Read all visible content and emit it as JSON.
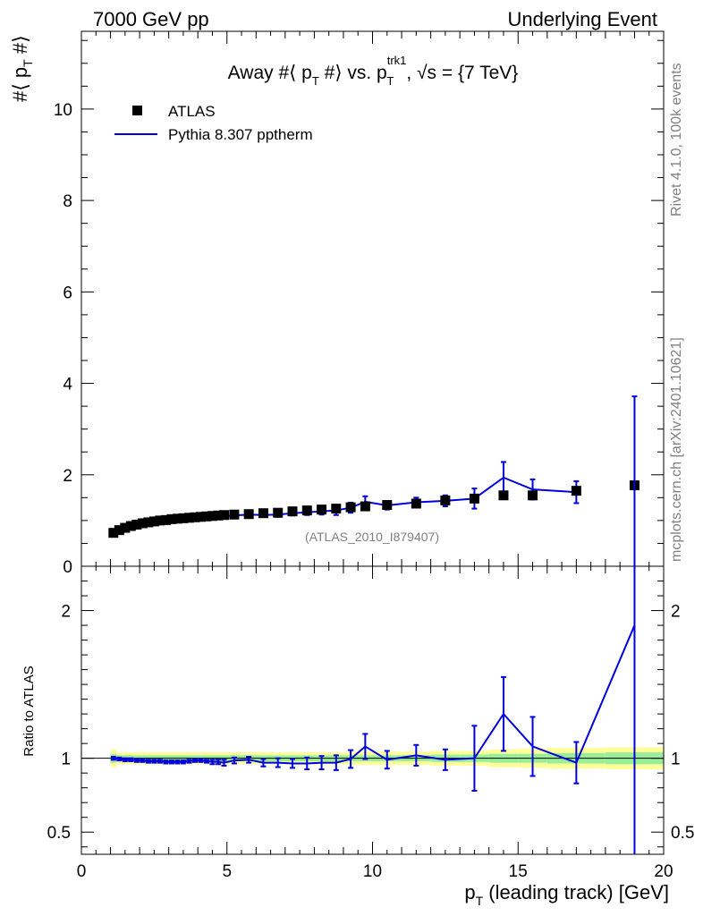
{
  "header": {
    "left": "7000 GeV pp",
    "right": "Underlying Event"
  },
  "side": {
    "rivet": "Rivet 4.1.0,  100k events",
    "mcplots": "mcplots.cern.ch [arXiv:2401.10621]"
  },
  "chart_data": [
    {
      "type": "scatter",
      "panel": "main",
      "title": "Away #⟨ p_T #⟩ vs. p_T^trk1, √s = {7 TeV}",
      "title_parts": {
        "a": "Away #⟨ p",
        "a_sub": "T",
        "b": " #⟩ vs. p",
        "b_sup": "trk1",
        "b_sub": "T",
        "c": ", √s = {7 TeV}"
      },
      "ylabel_parts": {
        "a": "#⟨ p",
        "sub": "T",
        "b": " #⟩"
      },
      "xlabel_parts": {
        "a": "p",
        "sub": "T",
        "b": " (leading track) [GeV]"
      },
      "watermark": "(ATLAS_2010_I879407)",
      "xlim": [
        0,
        20
      ],
      "ylim": [
        0,
        11.7
      ],
      "xticks": [
        0,
        5,
        10,
        15,
        20
      ],
      "xticklabels": [
        "0",
        "5",
        "10",
        "15",
        "20"
      ],
      "yticks": [
        0,
        2,
        4,
        6,
        8,
        10
      ],
      "yticklabels": [
        "0",
        "2",
        "4",
        "6",
        "8",
        "10"
      ],
      "legend": {
        "position": "top-left",
        "entries": [
          "ATLAS",
          "Pythia 8.307 pptherm"
        ]
      },
      "series": [
        {
          "name": "ATLAS",
          "style": "marker",
          "color": "#000000",
          "x": [
            1.1,
            1.3,
            1.5,
            1.7,
            1.9,
            2.1,
            2.3,
            2.5,
            2.7,
            2.9,
            3.1,
            3.3,
            3.5,
            3.7,
            3.9,
            4.1,
            4.3,
            4.5,
            4.7,
            4.9,
            5.25,
            5.75,
            6.25,
            6.75,
            7.25,
            7.75,
            8.25,
            8.75,
            9.25,
            9.75,
            10.5,
            11.5,
            12.5,
            13.5,
            14.5,
            15.5,
            17.0,
            19.0
          ],
          "y": [
            0.73,
            0.79,
            0.84,
            0.88,
            0.91,
            0.94,
            0.96,
            0.98,
            1.0,
            1.01,
            1.03,
            1.04,
            1.05,
            1.06,
            1.07,
            1.08,
            1.09,
            1.1,
            1.11,
            1.12,
            1.13,
            1.14,
            1.16,
            1.17,
            1.2,
            1.22,
            1.24,
            1.26,
            1.29,
            1.31,
            1.34,
            1.37,
            1.44,
            1.48,
            1.55,
            1.55,
            1.65,
            1.77
          ]
        },
        {
          "name": "Pythia 8.307 pptherm",
          "style": "line",
          "color": "#0000dd",
          "x": [
            1.1,
            1.3,
            1.5,
            1.7,
            1.9,
            2.1,
            2.3,
            2.5,
            2.7,
            2.9,
            3.1,
            3.3,
            3.5,
            3.7,
            3.9,
            4.1,
            4.3,
            4.5,
            4.7,
            4.9,
            5.25,
            5.75,
            6.25,
            6.75,
            7.25,
            7.75,
            8.25,
            8.75,
            9.25,
            9.75,
            10.5,
            11.5,
            12.5,
            13.5,
            14.5,
            15.5,
            17.0
          ],
          "y": [
            0.73,
            0.78,
            0.83,
            0.87,
            0.9,
            0.93,
            0.94,
            0.96,
            0.98,
            0.99,
            1.0,
            1.01,
            1.02,
            1.04,
            1.05,
            1.06,
            1.07,
            1.08,
            1.08,
            1.09,
            1.11,
            1.13,
            1.12,
            1.13,
            1.16,
            1.18,
            1.2,
            1.22,
            1.28,
            1.41,
            1.33,
            1.4,
            1.43,
            1.48,
            1.94,
            1.68,
            1.62
          ],
          "err": [
            0.01,
            0.01,
            0.01,
            0.01,
            0.01,
            0.01,
            0.01,
            0.01,
            0.01,
            0.01,
            0.01,
            0.01,
            0.01,
            0.02,
            0.02,
            0.02,
            0.02,
            0.02,
            0.02,
            0.02,
            0.03,
            0.03,
            0.04,
            0.05,
            0.05,
            0.06,
            0.07,
            0.1,
            0.11,
            0.12,
            0.09,
            0.1,
            0.12,
            0.22,
            0.34,
            0.22,
            0.24
          ]
        }
      ]
    },
    {
      "type": "line",
      "panel": "ratio",
      "ylabel": "Ratio to ATLAS",
      "xlim": [
        0,
        20
      ],
      "ylim": [
        0.35,
        2.3
      ],
      "yticks": [
        0.5,
        1,
        2
      ],
      "yticklabels": [
        "0.5",
        "1",
        "2"
      ],
      "band": {
        "x": [
          1.1,
          1.3,
          1.5,
          1.7,
          1.9,
          2.1,
          2.3,
          2.5,
          2.7,
          2.9,
          3.1,
          3.3,
          3.5,
          3.7,
          3.9,
          4.1,
          4.3,
          4.5,
          4.7,
          4.9,
          5.25,
          5.75,
          6.25,
          6.75,
          7.25,
          7.75,
          8.25,
          8.75,
          9.25,
          9.75,
          10.5,
          11.5,
          12.5,
          13.5,
          14.5,
          15.5,
          17.0,
          19.0
        ],
        "halfwidth": [
          0.1,
          0.1,
          0.1,
          0.1,
          0.1,
          0.2,
          0.2,
          0.2,
          0.2,
          0.2,
          0.2,
          0.2,
          0.2,
          0.2,
          0.2,
          0.2,
          0.2,
          0.2,
          0.2,
          0.2,
          0.5,
          0.5,
          0.5,
          0.5,
          0.5,
          0.5,
          0.5,
          0.5,
          0.5,
          0.5,
          0.5,
          0.5,
          0.5,
          0.5,
          0.5,
          0.5,
          1.0,
          1.0
        ],
        "outer": [
          0.06,
          0.04,
          0.04,
          0.04,
          0.04,
          0.04,
          0.04,
          0.04,
          0.04,
          0.04,
          0.04,
          0.04,
          0.04,
          0.04,
          0.04,
          0.04,
          0.04,
          0.04,
          0.04,
          0.04,
          0.04,
          0.04,
          0.04,
          0.04,
          0.04,
          0.04,
          0.04,
          0.04,
          0.04,
          0.045,
          0.045,
          0.045,
          0.05,
          0.05,
          0.06,
          0.065,
          0.07,
          0.075
        ],
        "inner": [
          0.03,
          0.02,
          0.02,
          0.02,
          0.02,
          0.02,
          0.02,
          0.02,
          0.02,
          0.02,
          0.02,
          0.02,
          0.02,
          0.02,
          0.02,
          0.02,
          0.02,
          0.02,
          0.02,
          0.02,
          0.02,
          0.02,
          0.02,
          0.02,
          0.02,
          0.02,
          0.02,
          0.02,
          0.02,
          0.02,
          0.02,
          0.02,
          0.025,
          0.025,
          0.03,
          0.03,
          0.035,
          0.04
        ]
      },
      "series": [
        {
          "name": "Pythia 8.307 pptherm / ATLAS",
          "color": "#0000dd",
          "x": [
            1.1,
            1.3,
            1.5,
            1.7,
            1.9,
            2.1,
            2.3,
            2.5,
            2.7,
            2.9,
            3.1,
            3.3,
            3.5,
            3.7,
            3.9,
            4.1,
            4.3,
            4.5,
            4.7,
            4.9,
            5.25,
            5.75,
            6.25,
            6.75,
            7.25,
            7.75,
            8.25,
            8.75,
            9.25,
            9.75,
            10.5,
            11.5,
            12.5,
            13.5,
            14.5,
            15.5,
            17.0,
            19.0
          ],
          "y": [
            1.0,
            0.995,
            0.99,
            0.99,
            0.985,
            0.985,
            0.98,
            0.98,
            0.98,
            0.975,
            0.975,
            0.975,
            0.975,
            0.98,
            0.985,
            0.985,
            0.98,
            0.975,
            0.975,
            0.97,
            0.985,
            0.99,
            0.97,
            0.97,
            0.965,
            0.965,
            0.97,
            0.97,
            0.995,
            1.08,
            0.99,
            1.02,
            0.99,
            1.0,
            1.3,
            1.08,
            0.97,
            1.9
          ],
          "err": [
            0.01,
            0.01,
            0.01,
            0.01,
            0.01,
            0.01,
            0.01,
            0.01,
            0.01,
            0.01,
            0.01,
            0.01,
            0.01,
            0.01,
            0.01,
            0.01,
            0.01,
            0.015,
            0.015,
            0.02,
            0.02,
            0.02,
            0.025,
            0.03,
            0.03,
            0.04,
            0.045,
            0.05,
            0.06,
            0.085,
            0.06,
            0.07,
            0.07,
            0.22,
            0.25,
            0.2,
            0.14,
            1.55
          ]
        }
      ]
    }
  ]
}
